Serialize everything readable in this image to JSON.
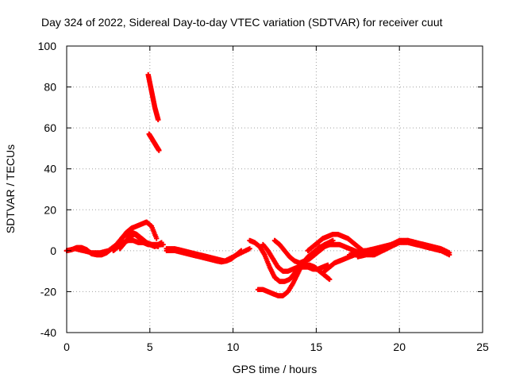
{
  "chart_data": {
    "type": "scatter",
    "title": "Day 324 of 2022, Sidereal Day-to-day VTEC variation (SDTVAR) for receiver cuut",
    "xlabel": "GPS time / hours",
    "ylabel": "SDTVAR / TECUs",
    "xlim": [
      0,
      25
    ],
    "ylim": [
      -40,
      100
    ],
    "xticks": [
      0,
      5,
      10,
      15,
      20,
      25
    ],
    "yticks": [
      -40,
      -20,
      0,
      20,
      40,
      60,
      80,
      100
    ],
    "xtick_labels": [
      "0",
      "5",
      "10",
      "15",
      "20",
      "25"
    ],
    "ytick_labels": [
      "-40",
      "-20",
      "0",
      "20",
      "40",
      "60",
      "80",
      "100"
    ],
    "grid": true,
    "marker": "+",
    "color": "#ff0000",
    "series": [
      {
        "name": "base-trace-1",
        "x": [
          0.0,
          0.3,
          0.6,
          0.9,
          1.2,
          1.5,
          1.8,
          2.1,
          2.4,
          2.7,
          3.0,
          3.3,
          3.6,
          3.9,
          4.2,
          4.5,
          4.8,
          5.1,
          5.4
        ],
        "y": [
          0,
          0.5,
          1.5,
          1.5,
          0.5,
          -1.5,
          -2,
          -2,
          -1,
          1,
          3,
          6,
          9,
          11,
          12,
          13,
          14,
          12,
          6
        ]
      },
      {
        "name": "base-trace-2",
        "x": [
          0.0,
          0.5,
          1.0,
          1.5,
          2.0,
          2.5,
          3.0,
          3.3,
          3.6,
          3.9,
          4.2,
          4.5,
          4.8,
          5.1,
          5.5
        ],
        "y": [
          0,
          1,
          0,
          -1,
          -1,
          0,
          3,
          6,
          8,
          9,
          8,
          6,
          4,
          3,
          2
        ]
      },
      {
        "name": "base-trace-3",
        "x": [
          2.8,
          3.1,
          3.4,
          3.7,
          4.0,
          4.3,
          4.6,
          4.9,
          5.2,
          5.5,
          5.8
        ],
        "y": [
          0,
          2,
          4,
          5,
          5,
          4,
          4,
          3,
          3,
          3,
          3
        ]
      },
      {
        "name": "base-trace-4",
        "x": [
          3.2,
          3.5,
          3.8,
          4.1,
          4.4,
          4.7,
          5.0,
          5.3,
          5.7
        ],
        "y": [
          1,
          4,
          7,
          8,
          6,
          4,
          3,
          2,
          4
        ]
      },
      {
        "name": "spike-upper",
        "x": [
          4.9,
          5.0,
          5.1,
          5.2,
          5.3,
          5.4,
          5.5
        ],
        "y": [
          86,
          82,
          78,
          74,
          70,
          67,
          64
        ]
      },
      {
        "name": "spike-lower",
        "x": [
          4.95,
          5.1,
          5.25,
          5.4,
          5.55
        ],
        "y": [
          57,
          55,
          53,
          51,
          49
        ]
      },
      {
        "name": "mid-trace-1",
        "x": [
          6.0,
          6.5,
          7.0,
          7.5,
          8.0,
          8.5,
          9.0,
          9.3,
          9.6,
          9.9,
          10.2,
          10.5
        ],
        "y": [
          0,
          0,
          -1,
          -2,
          -3,
          -4,
          -5,
          -5.5,
          -5,
          -4,
          -2,
          0
        ]
      },
      {
        "name": "mid-trace-2",
        "x": [
          6.0,
          6.5,
          7.0,
          7.5,
          8.0,
          8.5,
          9.0,
          9.5,
          10.0,
          10.5,
          11.0
        ],
        "y": [
          1,
          1,
          0,
          -1,
          -2,
          -3,
          -4,
          -5,
          -3,
          -1,
          1
        ]
      },
      {
        "name": "late-trace-1",
        "x": [
          11.0,
          11.3,
          11.6,
          11.9,
          12.2,
          12.5,
          12.8,
          13.1,
          13.4,
          13.7,
          14.0,
          14.3,
          14.6,
          14.9,
          15.2
        ],
        "y": [
          5,
          4,
          2,
          -2,
          -8,
          -13,
          -15,
          -15,
          -14,
          -11,
          -8,
          -5,
          -3,
          -1,
          2
        ]
      },
      {
        "name": "late-trace-2",
        "x": [
          11.5,
          11.8,
          12.1,
          12.4,
          12.7,
          13.0,
          13.3,
          13.6,
          13.9,
          14.2,
          14.5,
          14.8,
          15.1,
          15.5,
          16.0
        ],
        "y": [
          -19,
          -19,
          -20,
          -21,
          -22,
          -22,
          -20,
          -16,
          -11,
          -6,
          -3,
          -1,
          1,
          3,
          5
        ]
      },
      {
        "name": "late-trace-3",
        "x": [
          11.8,
          12.1,
          12.4,
          12.7,
          13.0,
          13.3,
          13.6,
          13.9,
          14.2,
          14.5,
          14.8,
          15.1,
          15.4,
          15.7
        ],
        "y": [
          3,
          0,
          -4,
          -8,
          -10,
          -10,
          -9,
          -8,
          -8,
          -8,
          -9,
          -9,
          -8,
          -7
        ]
      },
      {
        "name": "late-trace-4",
        "x": [
          12.5,
          12.8,
          13.1,
          13.4,
          13.7,
          14.0,
          14.3,
          14.6,
          14.9,
          15.2,
          15.5,
          15.8
        ],
        "y": [
          5,
          3,
          0,
          -3,
          -5,
          -6,
          -7,
          -7,
          -8,
          -10,
          -12,
          -14
        ]
      },
      {
        "name": "late-trace-5",
        "x": [
          14.5,
          14.8,
          15.1,
          15.4,
          15.7,
          16.0,
          16.3,
          16.6,
          16.9,
          17.2,
          17.5,
          17.8,
          18.1,
          18.4
        ],
        "y": [
          0,
          2,
          4,
          6,
          7,
          8,
          8,
          7,
          6,
          4,
          2,
          0,
          -1,
          -2
        ]
      },
      {
        "name": "late-trace-6",
        "x": [
          14.0,
          14.3,
          14.6,
          14.9,
          15.2,
          15.5,
          15.8,
          16.1,
          16.4,
          16.7,
          17.0,
          17.3,
          17.6,
          17.9
        ],
        "y": [
          -6,
          -5,
          -4,
          -2,
          0,
          2,
          3,
          3,
          3,
          2,
          1,
          0,
          -1,
          -1
        ]
      },
      {
        "name": "late-trace-7",
        "x": [
          15.5,
          15.8,
          16.1,
          16.4,
          16.7,
          17.0,
          17.3,
          17.6,
          17.9,
          18.2
        ],
        "y": [
          -10,
          -8,
          -6,
          -5,
          -4,
          -3,
          -2,
          -1,
          0,
          0
        ]
      },
      {
        "name": "end-trace-1",
        "x": [
          17.0,
          17.5,
          18.0,
          18.5,
          19.0,
          19.5,
          20.0,
          20.5,
          21.0,
          21.5,
          22.0,
          22.5,
          23.0
        ],
        "y": [
          -2,
          -1,
          0,
          1,
          2,
          3,
          5,
          5,
          4,
          3,
          2,
          1,
          -1
        ]
      },
      {
        "name": "end-trace-2",
        "x": [
          17.5,
          18.0,
          18.5,
          19.0,
          19.5,
          20.0,
          20.5,
          21.0,
          21.5,
          22.0,
          22.5,
          23.0
        ],
        "y": [
          -3,
          -2,
          -2,
          0,
          2,
          4,
          5,
          4,
          2,
          1,
          0,
          -2
        ]
      },
      {
        "name": "end-trace-3",
        "x": [
          18.0,
          18.5,
          19.0,
          19.5,
          20.0,
          20.5,
          21.0,
          21.5,
          22.0,
          22.5,
          22.9
        ],
        "y": [
          -1,
          0,
          1,
          3,
          4,
          4,
          3,
          2,
          1,
          0,
          -1
        ]
      }
    ]
  }
}
